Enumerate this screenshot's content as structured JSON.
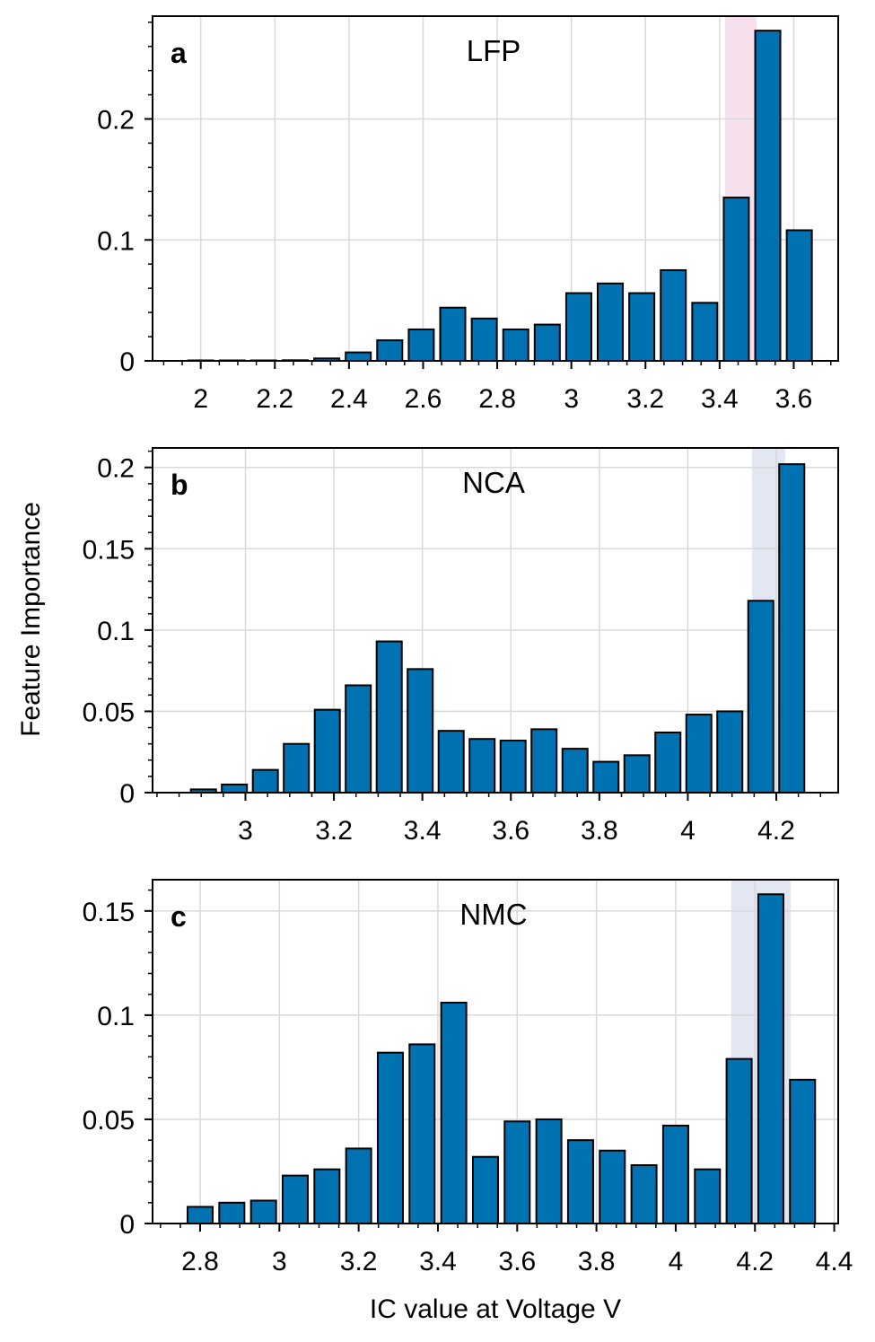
{
  "figure": {
    "ylabel": "Feature Importance",
    "xlabel": "IC value at Voltage V"
  },
  "colors": {
    "bar": "#0072b2",
    "bar_edge": "#000000",
    "grid": "#d9d9d9",
    "highlight_lfp": "#f6e0ee",
    "highlight_nca_nmc": "#e3e7f1"
  },
  "chart_data": [
    {
      "type": "bar",
      "letter": "a",
      "title": "LFP",
      "x": [
        2.0,
        2.085,
        2.17,
        2.255,
        2.34,
        2.425,
        2.51,
        2.595,
        2.68,
        2.765,
        2.85,
        2.935,
        3.02,
        3.105,
        3.19,
        3.275,
        3.36,
        3.445,
        3.53,
        3.615
      ],
      "values": [
        0.0,
        0.0,
        0.0,
        0.0005,
        0.002,
        0.007,
        0.017,
        0.026,
        0.044,
        0.035,
        0.026,
        0.03,
        0.056,
        0.064,
        0.056,
        0.075,
        0.048,
        0.135,
        0.273,
        0.108
      ],
      "xlim": [
        1.87,
        3.72
      ],
      "ylim": [
        0,
        0.285
      ],
      "xticks": [
        2,
        2.2,
        2.4,
        2.6,
        2.8,
        3,
        3.2,
        3.4,
        3.6
      ],
      "xticklabels": [
        "2",
        "2.2",
        "2.4",
        "2.6",
        "2.8",
        "3",
        "3.2",
        "3.4",
        "3.6"
      ],
      "yticks": [
        0,
        0.1,
        0.2
      ],
      "yticklabels": [
        "0",
        "0.1",
        "0.2"
      ],
      "highlight_range": [
        3.415,
        3.5
      ],
      "highlight_color": "#f6e0ee",
      "grid": true
    },
    {
      "type": "bar",
      "letter": "b",
      "title": "NCA",
      "x": [
        2.905,
        2.975,
        3.045,
        3.115,
        3.185,
        3.255,
        3.325,
        3.395,
        3.465,
        3.535,
        3.605,
        3.675,
        3.745,
        3.815,
        3.885,
        3.955,
        4.025,
        4.095,
        4.165,
        4.235
      ],
      "values": [
        0.002,
        0.005,
        0.014,
        0.03,
        0.051,
        0.066,
        0.093,
        0.076,
        0.038,
        0.033,
        0.032,
        0.039,
        0.027,
        0.019,
        0.023,
        0.037,
        0.048,
        0.05,
        0.118,
        0.202
      ],
      "xlim": [
        2.79,
        4.34
      ],
      "ylim": [
        0,
        0.212
      ],
      "xticks": [
        3,
        3.2,
        3.4,
        3.6,
        3.8,
        4,
        4.2
      ],
      "xticklabels": [
        "3",
        "3.2",
        "3.4",
        "3.6",
        "3.8",
        "4",
        "4.2"
      ],
      "yticks": [
        0,
        0.05,
        0.1,
        0.15,
        0.2
      ],
      "yticklabels": [
        "0",
        "0.05",
        "0.1",
        "0.15",
        "0.2"
      ],
      "highlight_range": [
        4.145,
        4.22
      ],
      "highlight_color": "#e3e7f1",
      "grid": true
    },
    {
      "type": "bar",
      "letter": "c",
      "title": "NMC",
      "x": [
        2.8,
        2.88,
        2.96,
        3.04,
        3.12,
        3.2,
        3.28,
        3.36,
        3.44,
        3.52,
        3.6,
        3.68,
        3.76,
        3.84,
        3.92,
        4.0,
        4.08,
        4.16,
        4.24,
        4.32
      ],
      "values": [
        0.008,
        0.01,
        0.011,
        0.023,
        0.026,
        0.036,
        0.082,
        0.086,
        0.106,
        0.032,
        0.049,
        0.05,
        0.04,
        0.035,
        0.028,
        0.047,
        0.026,
        0.079,
        0.158,
        0.069
      ],
      "xlim": [
        2.68,
        4.41
      ],
      "ylim": [
        0,
        0.165
      ],
      "xticks": [
        2.8,
        3,
        3.2,
        3.4,
        3.6,
        3.8,
        4,
        4.2,
        4.4
      ],
      "xticklabels": [
        "2.8",
        "3",
        "3.2",
        "3.4",
        "3.6",
        "3.8",
        "4",
        "4.2",
        "4.4"
      ],
      "yticks": [
        0,
        0.05,
        0.1,
        0.15
      ],
      "yticklabels": [
        "0",
        "0.05",
        "0.1",
        "0.15"
      ],
      "highlight_range": [
        4.14,
        4.29
      ],
      "highlight_color": "#e3e7f1",
      "grid": true
    }
  ]
}
